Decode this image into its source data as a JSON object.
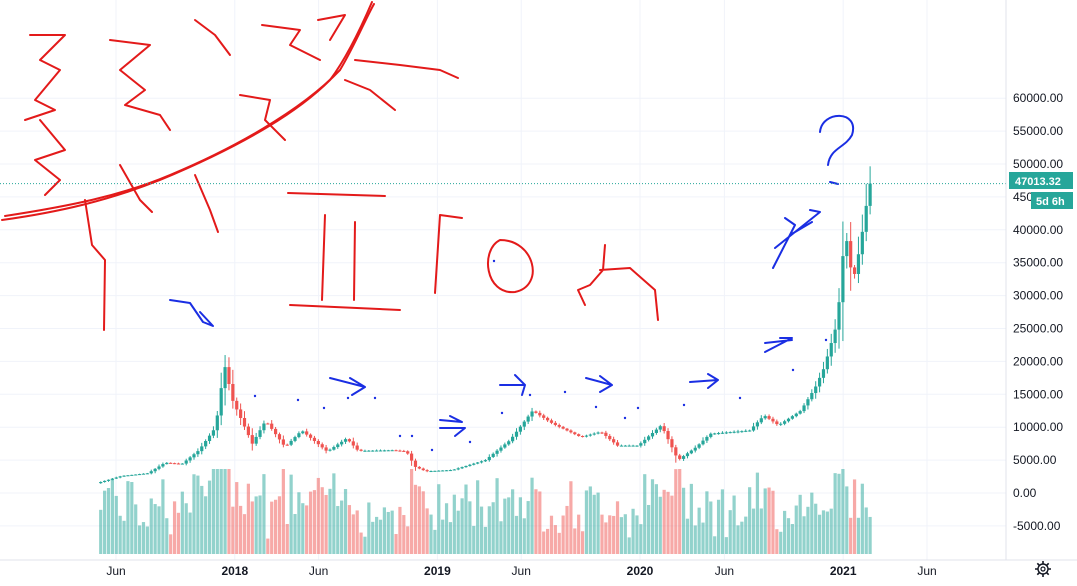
{
  "chart_data": {
    "type": "candlestick",
    "y_ticks": [
      "60000.00",
      "55000.00",
      "50000.00",
      "45000.00",
      "40000.00",
      "35000.00",
      "30000.00",
      "25000.00",
      "20000.00",
      "15000.00",
      "10000.00",
      "5000.00",
      "0.00",
      "-5000.00"
    ],
    "y_tick_values": [
      60000,
      55000,
      50000,
      45000,
      40000,
      35000,
      30000,
      25000,
      20000,
      15000,
      10000,
      5000,
      0,
      -5000
    ],
    "ylim": [
      -9500,
      60500
    ],
    "x_labels": [
      "Jun",
      "2018",
      "Jun",
      "2019",
      "Jun",
      "2020",
      "Jun",
      "2021",
      "Jun"
    ],
    "x_label_bold": [
      false,
      true,
      false,
      true,
      false,
      true,
      false,
      true,
      false
    ],
    "x_label_dates": [
      "2017-06-01",
      "2018-01-01",
      "2018-06-01",
      "2019-01-01",
      "2019-06-01",
      "2020-01-01",
      "2020-06-01",
      "2021-01-01",
      "2021-06-01"
    ],
    "last_price": 47013.32,
    "last_price_label": "47013.32",
    "countdown_label": "5d 6h",
    "price_key_points": [
      [
        "2017-05-01",
        1500
      ],
      [
        "2017-06-15",
        2600
      ],
      [
        "2017-08-01",
        3000
      ],
      [
        "2017-09-01",
        4600
      ],
      [
        "2017-10-01",
        4400
      ],
      [
        "2017-11-01",
        6500
      ],
      [
        "2017-12-01",
        10000
      ],
      [
        "2017-12-17",
        19500
      ],
      [
        "2018-01-01",
        14000
      ],
      [
        "2018-02-05",
        7500
      ],
      [
        "2018-03-01",
        11000
      ],
      [
        "2018-04-05",
        7000
      ],
      [
        "2018-05-05",
        9500
      ],
      [
        "2018-06-20",
        6300
      ],
      [
        "2018-07-25",
        8300
      ],
      [
        "2018-08-15",
        6400
      ],
      [
        "2018-10-15",
        6500
      ],
      [
        "2018-11-10",
        6300
      ],
      [
        "2018-11-25",
        4000
      ],
      [
        "2018-12-15",
        3300
      ],
      [
        "2019-02-01",
        3500
      ],
      [
        "2019-04-01",
        5000
      ],
      [
        "2019-05-15",
        8000
      ],
      [
        "2019-06-25",
        12500
      ],
      [
        "2019-08-01",
        10500
      ],
      [
        "2019-09-20",
        8500
      ],
      [
        "2019-10-26",
        9300
      ],
      [
        "2019-11-25",
        7200
      ],
      [
        "2020-01-01",
        7200
      ],
      [
        "2020-02-12",
        10300
      ],
      [
        "2020-03-13",
        5000
      ],
      [
        "2020-04-15",
        7000
      ],
      [
        "2020-05-10",
        9000
      ],
      [
        "2020-07-20",
        9500
      ],
      [
        "2020-08-15",
        11800
      ],
      [
        "2020-09-10",
        10300
      ],
      [
        "2020-10-20",
        12500
      ],
      [
        "2020-11-15",
        16000
      ],
      [
        "2020-12-01",
        19000
      ],
      [
        "2020-12-25",
        26000
      ],
      [
        "2021-01-08",
        40000
      ],
      [
        "2021-01-22",
        32000
      ],
      [
        "2021-02-05",
        38000
      ],
      [
        "2021-02-21",
        47013
      ]
    ],
    "volume_note": "Volume histogram plotted from the bottom of the pane"
  }
}
